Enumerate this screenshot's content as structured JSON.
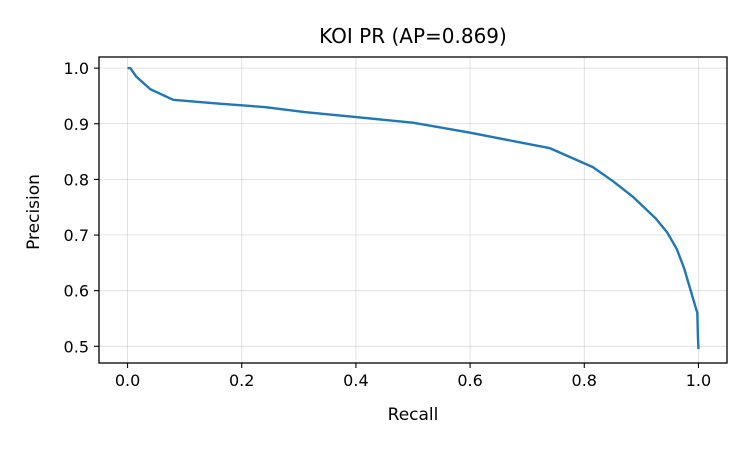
{
  "chart_data": {
    "type": "line",
    "title": "KOI PR (AP=0.869)",
    "xlabel": "Recall",
    "ylabel": "Precision",
    "xlim": [
      -0.05,
      1.05
    ],
    "ylim": [
      0.47,
      1.02
    ],
    "xticks": [
      0.0,
      0.2,
      0.4,
      0.6,
      0.8,
      1.0
    ],
    "xtick_labels": [
      "0.0",
      "0.2",
      "0.4",
      "0.6",
      "0.8",
      "1.0"
    ],
    "yticks": [
      0.5,
      0.6,
      0.7,
      0.8,
      0.9,
      1.0
    ],
    "ytick_labels": [
      "0.5",
      "0.6",
      "0.7",
      "0.8",
      "0.9",
      "1.0"
    ],
    "grid": true,
    "legend": false,
    "color": "#1f77b4",
    "series": [
      {
        "x": [
          0.0,
          0.005,
          0.015,
          0.04,
          0.08,
          0.15,
          0.24,
          0.31,
          0.4,
          0.5,
          0.6,
          0.68,
          0.74,
          0.815,
          0.85,
          0.885,
          0.925,
          0.945,
          0.962,
          0.975,
          0.985,
          0.998,
          0.999,
          1.0
        ],
        "y": [
          1.0,
          1.0,
          0.985,
          0.962,
          0.943,
          0.937,
          0.93,
          0.921,
          0.912,
          0.902,
          0.884,
          0.868,
          0.856,
          0.822,
          0.797,
          0.769,
          0.73,
          0.705,
          0.675,
          0.64,
          0.605,
          0.56,
          0.52,
          0.495
        ]
      }
    ]
  }
}
